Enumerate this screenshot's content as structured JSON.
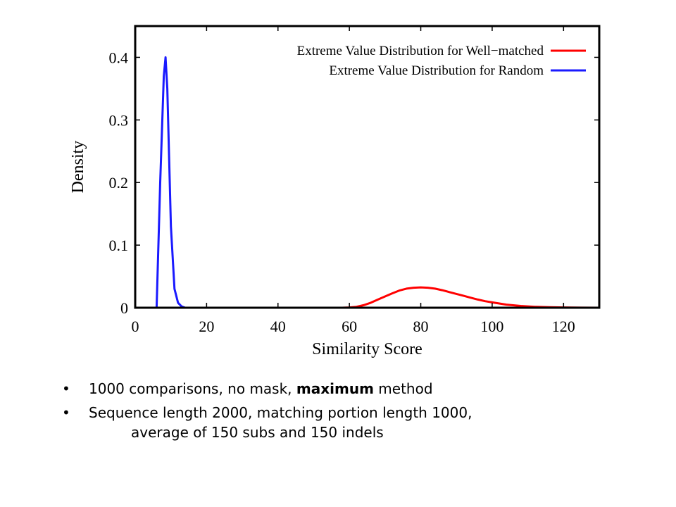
{
  "chart_data": {
    "type": "line",
    "xlabel": "Similarity Score",
    "ylabel": "Density",
    "xlim": [
      0,
      130
    ],
    "ylim": [
      0,
      0.45
    ],
    "xticks": [
      0,
      20,
      40,
      60,
      80,
      100,
      120
    ],
    "yticks": [
      0,
      0.1,
      0.2,
      0.3,
      0.4
    ],
    "ytick_labels": [
      "0",
      "0.1",
      "0.2",
      "0.3",
      "0.4"
    ],
    "legend_position": "top-right",
    "series": [
      {
        "name": "Extreme Value Distribution for Well−matched",
        "color": "#ff0000",
        "x": [
          0,
          58,
          60,
          62,
          64,
          66,
          68,
          70,
          72,
          74,
          76,
          78,
          80,
          82,
          84,
          86,
          88,
          90,
          92,
          94,
          96,
          98,
          100,
          104,
          108,
          112,
          116,
          120,
          125,
          130
        ],
        "y": [
          0,
          0,
          0.0005,
          0.0015,
          0.004,
          0.008,
          0.013,
          0.018,
          0.023,
          0.0275,
          0.0305,
          0.032,
          0.0325,
          0.032,
          0.0305,
          0.028,
          0.025,
          0.022,
          0.019,
          0.016,
          0.013,
          0.0105,
          0.0085,
          0.005,
          0.0028,
          0.0015,
          0.0008,
          0.0004,
          0.0001,
          0
        ]
      },
      {
        "name": "Extreme Value Distribution for Random",
        "color": "#1a1aff",
        "x": [
          0,
          6,
          7,
          8,
          8.5,
          9,
          10,
          11,
          12,
          13,
          14,
          16,
          20,
          130
        ],
        "y": [
          0,
          0,
          0.2,
          0.37,
          0.4,
          0.35,
          0.13,
          0.03,
          0.008,
          0.002,
          0,
          0,
          0,
          0
        ]
      }
    ]
  },
  "notes": {
    "item1": {
      "before": "1000 comparisons, no mask, ",
      "bold": "maximum",
      "after": " method"
    },
    "item2": {
      "line1": "Sequence length 2000, matching portion length 1000,",
      "line2": "average of 150 subs and 150 indels"
    },
    "bullet_char": "•"
  }
}
